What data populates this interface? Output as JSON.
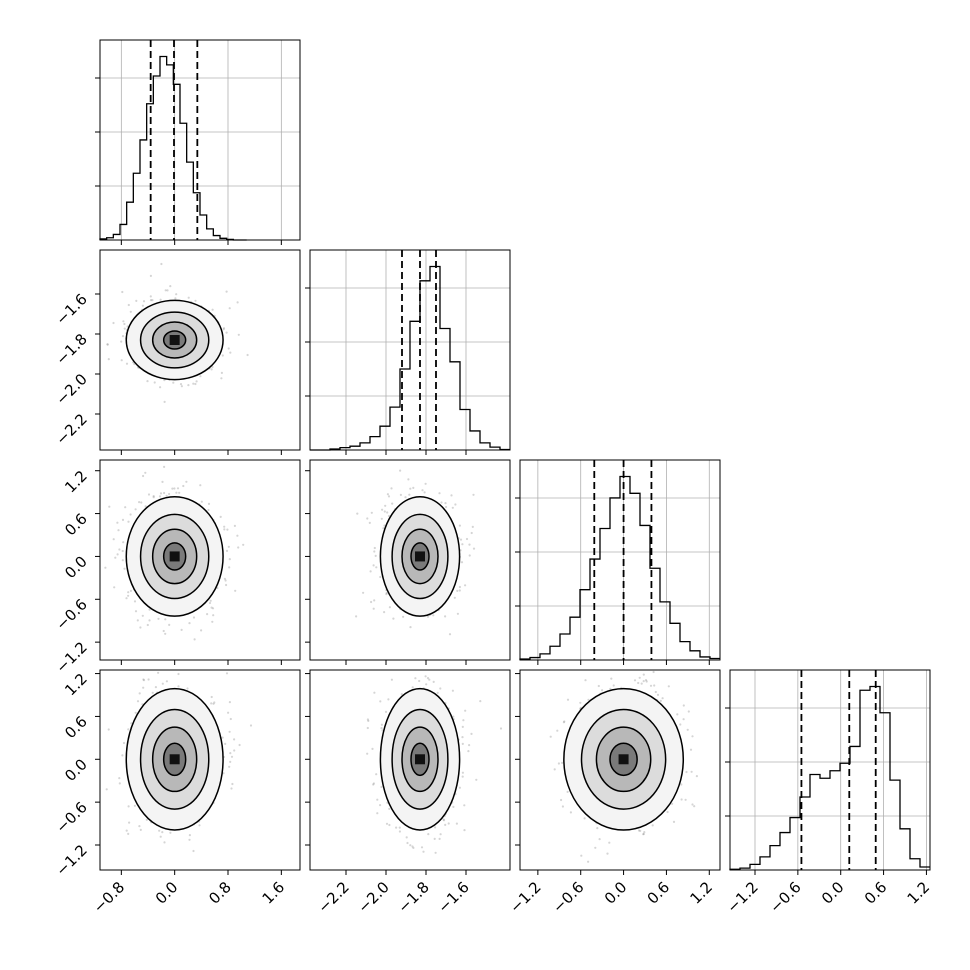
{
  "chart_data": {
    "type": "corner",
    "dimensions": [
      {
        "name": "",
        "range": [
          -1.12,
          1.88
        ],
        "ticks": [
          -0.8,
          0.0,
          0.8,
          1.6
        ],
        "tick_labels": [
          "−0.8",
          "0.0",
          "0.8",
          "1.6"
        ]
      },
      {
        "name": "",
        "range": [
          -2.38,
          -1.38
        ],
        "ticks": [
          -2.2,
          -2.0,
          -1.8,
          -1.6
        ],
        "tick_labels": [
          "−2.2",
          "−2.0",
          "−1.8",
          "−1.6"
        ]
      },
      {
        "name": "",
        "range": [
          -1.45,
          1.35
        ],
        "ticks": [
          -1.2,
          -0.6,
          0.0,
          0.6,
          1.2
        ],
        "tick_labels": [
          "−1.2",
          "−0.6",
          "0.0",
          "0.6",
          "1.2"
        ]
      },
      {
        "name": "",
        "range": [
          -1.55,
          1.25
        ],
        "ticks": [
          -1.2,
          -0.6,
          0.0,
          0.6,
          1.2
        ],
        "tick_labels": [
          "−1.2",
          "−0.6",
          "0.0",
          "0.6",
          "1.2"
        ]
      }
    ],
    "histograms": [
      {
        "bins_x": [
          -1.12,
          -1.02,
          -0.92,
          -0.82,
          -0.72,
          -0.62,
          -0.52,
          -0.42,
          -0.32,
          -0.22,
          -0.12,
          -0.02,
          0.08,
          0.18,
          0.28,
          0.38,
          0.48,
          0.58,
          0.68,
          0.78,
          0.88,
          0.98,
          1.08
        ],
        "counts": [
          2,
          4,
          10,
          28,
          68,
          120,
          180,
          245,
          295,
          330,
          315,
          280,
          210,
          140,
          85,
          45,
          20,
          8,
          3,
          1,
          0,
          0
        ],
        "quantiles": [
          -0.36,
          -0.01,
          0.34
        ]
      },
      {
        "bins_x": [
          -2.38,
          -2.33,
          -2.28,
          -2.23,
          -2.18,
          -2.13,
          -2.08,
          -2.03,
          -1.98,
          -1.93,
          -1.88,
          -1.83,
          -1.78,
          -1.73,
          -1.68,
          -1.63,
          -1.58,
          -1.53,
          -1.48,
          -1.43,
          -1.38
        ],
        "counts": [
          0,
          0,
          2,
          5,
          8,
          15,
          28,
          50,
          90,
          170,
          270,
          355,
          385,
          255,
          185,
          85,
          40,
          15,
          6,
          1
        ],
        "quantiles": [
          -1.92,
          -1.83,
          -1.75
        ]
      },
      {
        "bins_x": [
          -1.45,
          -1.31,
          -1.17,
          -1.03,
          -0.89,
          -0.75,
          -0.61,
          -0.47,
          -0.33,
          -0.19,
          -0.05,
          0.09,
          0.23,
          0.37,
          0.51,
          0.65,
          0.79,
          0.93,
          1.07,
          1.21,
          1.35
        ],
        "counts": [
          3,
          8,
          20,
          45,
          85,
          140,
          230,
          330,
          430,
          530,
          600,
          545,
          440,
          300,
          190,
          120,
          60,
          30,
          10,
          5
        ],
        "quantiles": [
          -0.41,
          0.0,
          0.39
        ]
      },
      {
        "bins_x": [
          -1.55,
          -1.41,
          -1.27,
          -1.13,
          -0.99,
          -0.85,
          -0.71,
          -0.57,
          -0.43,
          -0.29,
          -0.15,
          -0.01,
          0.13,
          0.27,
          0.41,
          0.55,
          0.69,
          0.83,
          0.97,
          1.11,
          1.25
        ],
        "counts": [
          2,
          5,
          15,
          35,
          65,
          100,
          140,
          195,
          255,
          245,
          265,
          285,
          330,
          480,
          490,
          420,
          240,
          110,
          30,
          8
        ],
        "quantiles": [
          -0.55,
          0.12,
          0.49
        ]
      }
    ],
    "scatter_panels": [
      {
        "x_dim": 0,
        "y_dim": 1,
        "mean": [
          0.0,
          -1.83
        ],
        "sd": [
          0.33,
          0.09
        ]
      },
      {
        "x_dim": 0,
        "y_dim": 2,
        "mean": [
          0.0,
          0.0
        ],
        "sd": [
          0.33,
          0.38
        ]
      },
      {
        "x_dim": 1,
        "y_dim": 2,
        "mean": [
          -1.83,
          0.0
        ],
        "sd": [
          0.09,
          0.38
        ]
      },
      {
        "x_dim": 0,
        "y_dim": 3,
        "mean": [
          0.0,
          0.0
        ],
        "sd": [
          0.33,
          0.45
        ]
      },
      {
        "x_dim": 1,
        "y_dim": 3,
        "mean": [
          -1.83,
          0.0
        ],
        "sd": [
          0.09,
          0.45
        ]
      },
      {
        "x_dim": 2,
        "y_dim": 3,
        "mean": [
          0.0,
          0.0
        ],
        "sd": [
          0.38,
          0.45
        ]
      }
    ],
    "grid": true
  }
}
